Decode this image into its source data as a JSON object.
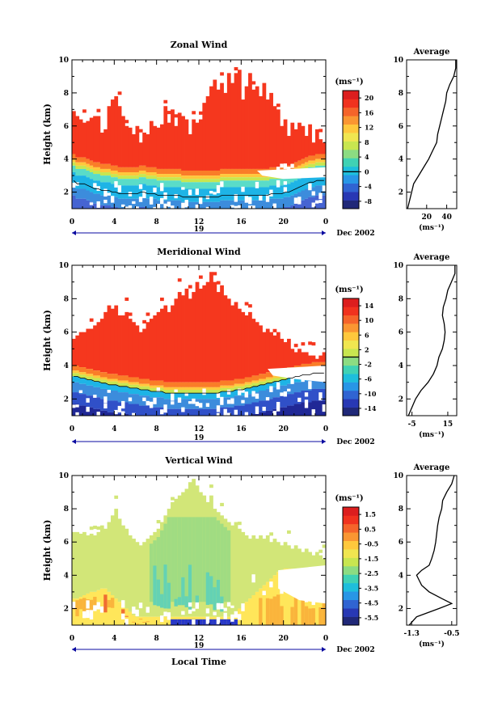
{
  "figure": {
    "date_label": "Dec 2002",
    "xlabel": "Local Time",
    "ylabel": "Height (km)",
    "day_label": "19",
    "unit_label": "(ms⁻¹)",
    "avg_title": "Average"
  },
  "chart_data": [
    {
      "type": "heatmap",
      "title": "Zonal Wind",
      "xlabel": "Local Time",
      "ylabel": "Height (km)",
      "xlim": [
        0,
        24
      ],
      "ylim": [
        1,
        10
      ],
      "xticks": [
        "0",
        "4",
        "8",
        "12",
        "16",
        "20",
        "0"
      ],
      "yticks": [
        "2",
        "4",
        "6",
        "8",
        "10"
      ],
      "colorbar": {
        "label": "(ms⁻¹)",
        "ticks": [
          "20",
          "16",
          "12",
          "8",
          "4",
          "0",
          "-4",
          "-8"
        ],
        "range": [
          -10,
          22
        ],
        "zero_line": 0
      },
      "top_height": [
        6.9,
        6.6,
        6.4,
        6.2,
        6.3,
        6.5,
        6.6,
        6.6,
        5.6,
        5.8,
        7.2,
        7.6,
        7.8,
        7.2,
        6.6,
        6.0,
        5.9,
        5.5,
        6.0,
        5.0,
        5.6,
        5.5,
        6.3,
        6.0,
        5.9,
        6.1,
        7.2,
        6.2,
        7.0,
        6.0,
        6.8,
        6.6,
        6.4,
        5.5,
        6.4,
        6.2,
        6.4,
        7.4,
        7.8,
        8.4,
        8.8,
        8.2,
        8.6,
        8.0,
        9.2,
        8.6,
        9.2,
        9.4,
        7.6,
        8.4,
        9.2,
        8.2,
        8.4,
        7.8,
        8.6,
        7.6,
        8.0,
        7.2,
        7.0,
        6.0,
        6.4,
        5.4,
        6.2,
        5.8,
        6.2,
        6.0,
        5.4,
        6.1,
        5.0,
        5.8,
        5.2,
        5.0
      ],
      "red_bottom": [
        4.8,
        4.6,
        4.6,
        4.6,
        4.5,
        4.4,
        4.3,
        4.3,
        4.2,
        4.2,
        4.2,
        4.1,
        4.1,
        4.0,
        4.0,
        4.0,
        4.0,
        4.0,
        4.0,
        4.1,
        4.1,
        4.0,
        4.0,
        4.0,
        3.9,
        3.9,
        3.9,
        3.9,
        3.9,
        3.9,
        3.9,
        3.8,
        3.8,
        3.8,
        3.8,
        3.8,
        3.8,
        3.8,
        3.8,
        3.8,
        3.8,
        3.8,
        3.9,
        3.9,
        3.9,
        3.9,
        3.9,
        3.9,
        3.9,
        3.9,
        3.9,
        3.9,
        3.9,
        3.9,
        3.9,
        3.9,
        4.0,
        4.0,
        4.0,
        4.0,
        4.1,
        4.1,
        4.2,
        4.3,
        4.4,
        4.5,
        4.6,
        4.7,
        4.7,
        4.8,
        4.8,
        4.8
      ],
      "bands": [
        {
          "offset": 0.0,
          "color": "#f5371e"
        },
        {
          "offset": 0.5,
          "color": "#fa7d28"
        },
        {
          "offset": 0.8,
          "color": "#ffc83c"
        },
        {
          "offset": 1.0,
          "color": "#c8e650"
        },
        {
          "offset": 1.2,
          "color": "#5adcc8"
        },
        {
          "offset": 1.6,
          "color": "#1eb4e6"
        },
        {
          "offset": 2.4,
          "color": "#3c8cdc"
        },
        {
          "offset": 3.0,
          "color": "#4664d2"
        }
      ],
      "avg_profile": {
        "xlabel": "(ms⁻¹)",
        "xticks": [
          "20",
          "40"
        ],
        "xlim": [
          0,
          50
        ],
        "height": [
          1.0,
          1.5,
          2.0,
          2.5,
          3.0,
          3.5,
          4.0,
          4.5,
          5.0,
          5.5,
          6.0,
          6.5,
          7.0,
          7.5,
          8.0,
          8.5,
          9.0,
          9.5,
          10.0
        ],
        "value": [
          1.0,
          3.0,
          5.0,
          7.0,
          12.0,
          17.0,
          22.0,
          26.0,
          30.0,
          31.0,
          33.0,
          35.0,
          37.0,
          39.0,
          40.0,
          43.0,
          47.0,
          49.0,
          49.0
        ]
      }
    },
    {
      "type": "heatmap",
      "title": "Meridional Wind",
      "xlabel": "Local Time",
      "ylabel": "Height (km)",
      "xlim": [
        0,
        24
      ],
      "ylim": [
        1,
        10
      ],
      "xticks": [
        "0",
        "4",
        "8",
        "12",
        "16",
        "20",
        "0"
      ],
      "yticks": [
        "2",
        "4",
        "6",
        "8",
        "10"
      ],
      "colorbar": {
        "label": "(ms⁻¹)",
        "ticks": [
          "14",
          "10",
          "6",
          "2",
          "-2",
          "-6",
          "-10",
          "-14"
        ],
        "range": [
          -16,
          16
        ],
        "zero_line": 0
      },
      "top_height": [
        5.6,
        5.8,
        6.0,
        6.0,
        6.2,
        6.2,
        6.4,
        6.6,
        6.8,
        7.2,
        7.6,
        7.4,
        7.6,
        7.0,
        7.0,
        7.2,
        6.8,
        6.6,
        6.4,
        6.0,
        6.2,
        6.6,
        6.8,
        7.0,
        7.2,
        7.4,
        7.6,
        7.2,
        7.6,
        8.0,
        8.4,
        8.2,
        8.6,
        8.0,
        8.4,
        9.0,
        8.6,
        8.8,
        9.0,
        9.6,
        9.0,
        8.4,
        8.8,
        8.2,
        8.0,
        7.6,
        7.8,
        7.4,
        7.2,
        7.0,
        7.2,
        6.8,
        6.6,
        6.4,
        6.0,
        6.2,
        6.0,
        5.8,
        6.0,
        5.6,
        5.4,
        5.6,
        5.0,
        4.8,
        5.0,
        4.8,
        4.8,
        4.6,
        4.6,
        4.4,
        4.6,
        4.8
      ],
      "red_bottom": [
        4.3,
        4.3,
        4.2,
        4.2,
        4.1,
        4.1,
        4.0,
        4.0,
        3.9,
        3.9,
        3.8,
        3.8,
        3.8,
        3.7,
        3.7,
        3.7,
        3.6,
        3.6,
        3.6,
        3.5,
        3.5,
        3.5,
        3.4,
        3.4,
        3.4,
        3.4,
        3.3,
        3.3,
        3.3,
        3.3,
        3.3,
        3.3,
        3.3,
        3.3,
        3.3,
        3.3,
        3.3,
        3.3,
        3.3,
        3.3,
        3.3,
        3.3,
        3.4,
        3.4,
        3.4,
        3.4,
        3.5,
        3.5,
        3.5,
        3.6,
        3.6,
        3.7,
        3.7,
        3.8,
        3.8,
        3.9,
        3.9,
        4.0,
        4.0,
        4.1,
        4.1,
        4.2,
        4.2,
        4.3,
        4.3,
        4.4,
        4.4,
        4.4,
        4.5,
        4.5,
        4.5,
        4.5
      ],
      "bands": [
        {
          "offset": 0.0,
          "color": "#f5371e"
        },
        {
          "offset": 0.3,
          "color": "#fa7d28"
        },
        {
          "offset": 0.6,
          "color": "#ffc83c"
        },
        {
          "offset": 0.75,
          "color": "#c8e650"
        },
        {
          "offset": 0.95,
          "color": "#1eb4e6"
        },
        {
          "offset": 1.3,
          "color": "#3c8cdc"
        },
        {
          "offset": 1.9,
          "color": "#3050c8"
        },
        {
          "offset": 2.6,
          "color": "#202896"
        }
      ],
      "avg_profile": {
        "xlabel": "(ms⁻¹)",
        "xticks": [
          "-5",
          "15"
        ],
        "xlim": [
          -8,
          20
        ],
        "height": [
          1.0,
          1.5,
          2.0,
          2.5,
          3.0,
          3.5,
          4.0,
          4.5,
          5.0,
          5.5,
          6.0,
          6.5,
          7.0,
          7.5,
          8.0,
          8.5,
          9.0,
          9.5,
          10.0
        ],
        "value": [
          -7.0,
          -5.0,
          -3.0,
          0.0,
          4.0,
          7.0,
          9.0,
          10.0,
          12.0,
          13.0,
          13.5,
          13.0,
          12.0,
          12.5,
          14.0,
          15.0,
          17.0,
          19.0,
          19.0
        ]
      }
    },
    {
      "type": "heatmap",
      "title": "Vertical Wind",
      "xlabel": "Local Time",
      "ylabel": "Height (km)",
      "xlim": [
        0,
        24
      ],
      "ylim": [
        1,
        10
      ],
      "xticks": [
        "0",
        "4",
        "8",
        "12",
        "16",
        "20",
        "0"
      ],
      "yticks": [
        "2",
        "4",
        "6",
        "8",
        "10"
      ],
      "colorbar": {
        "label": "(ms⁻¹)",
        "ticks": [
          "1.5",
          "0.5",
          "-0.5",
          "-1.5",
          "-2.5",
          "-3.5",
          "-4.5",
          "-5.5"
        ],
        "range": [
          -6,
          2
        ]
      },
      "top_height": [
        6.6,
        6.6,
        6.5,
        6.6,
        6.4,
        6.5,
        6.4,
        6.6,
        7.0,
        6.8,
        7.2,
        7.6,
        8.0,
        7.4,
        7.0,
        6.8,
        6.4,
        6.2,
        6.0,
        5.8,
        6.0,
        6.2,
        6.4,
        6.6,
        6.8,
        7.2,
        7.6,
        8.0,
        8.4,
        8.6,
        8.8,
        9.0,
        9.2,
        9.6,
        9.8,
        9.4,
        9.0,
        8.8,
        8.4,
        8.8,
        8.0,
        7.8,
        7.6,
        7.4,
        7.2,
        7.0,
        7.2,
        6.8,
        6.6,
        6.4,
        6.2,
        6.4,
        6.2,
        6.4,
        6.2,
        6.4,
        6.0,
        6.2,
        6.0,
        5.8,
        6.0,
        5.8,
        5.6,
        5.8,
        5.6,
        5.4,
        5.6,
        5.4,
        5.2,
        5.4,
        5.2,
        5.0
      ],
      "green_bottom": [
        2.6,
        2.6,
        2.7,
        2.8,
        2.9,
        3.0,
        3.0,
        3.1,
        3.2,
        3.2,
        3.0,
        2.8,
        2.6,
        2.4,
        2.2,
        2.0,
        1.8,
        1.6,
        1.5,
        1.5,
        1.5,
        1.5,
        1.5,
        1.5,
        1.5,
        1.5,
        1.5,
        1.5,
        1.5,
        1.5,
        1.5,
        1.5,
        1.5,
        1.5,
        1.5,
        1.5,
        1.5,
        1.5,
        1.5,
        1.5,
        1.5,
        1.5,
        1.5,
        1.5,
        1.5,
        1.6,
        1.8,
        2.0,
        2.2,
        2.4,
        2.6,
        2.8,
        3.0,
        3.2,
        3.4,
        3.6,
        3.8,
        4.0,
        4.2,
        4.3,
        4.4,
        4.4,
        4.4,
        4.4,
        4.4,
        4.4,
        4.4,
        4.4,
        4.4,
        4.4,
        4.4,
        4.4
      ],
      "colors": {
        "light_green": "#d2e678",
        "mid_green": "#a0dc82",
        "teal": "#64d2b4",
        "yellow": "#ffe65a",
        "orange": "#fab43c",
        "red_orange": "#f06e32",
        "deep_blue": "#2838c8"
      },
      "avg_profile": {
        "xlabel": "(ms⁻¹)",
        "xticks": [
          "-1.3",
          "-0.5"
        ],
        "xlim": [
          -1.4,
          -0.4
        ],
        "height": [
          1.0,
          1.5,
          2.0,
          2.3,
          2.6,
          3.0,
          3.4,
          3.7,
          4.0,
          4.3,
          4.6,
          5.0,
          5.5,
          6.0,
          6.5,
          7.0,
          7.5,
          8.0,
          8.5,
          9.0,
          9.5,
          10.0
        ],
        "value": [
          -1.35,
          -1.2,
          -0.75,
          -0.5,
          -0.7,
          -0.95,
          -1.1,
          -1.15,
          -1.2,
          -1.1,
          -0.95,
          -0.9,
          -0.85,
          -0.82,
          -0.8,
          -0.78,
          -0.75,
          -0.7,
          -0.68,
          -0.6,
          -0.5,
          -0.45
        ]
      }
    }
  ]
}
